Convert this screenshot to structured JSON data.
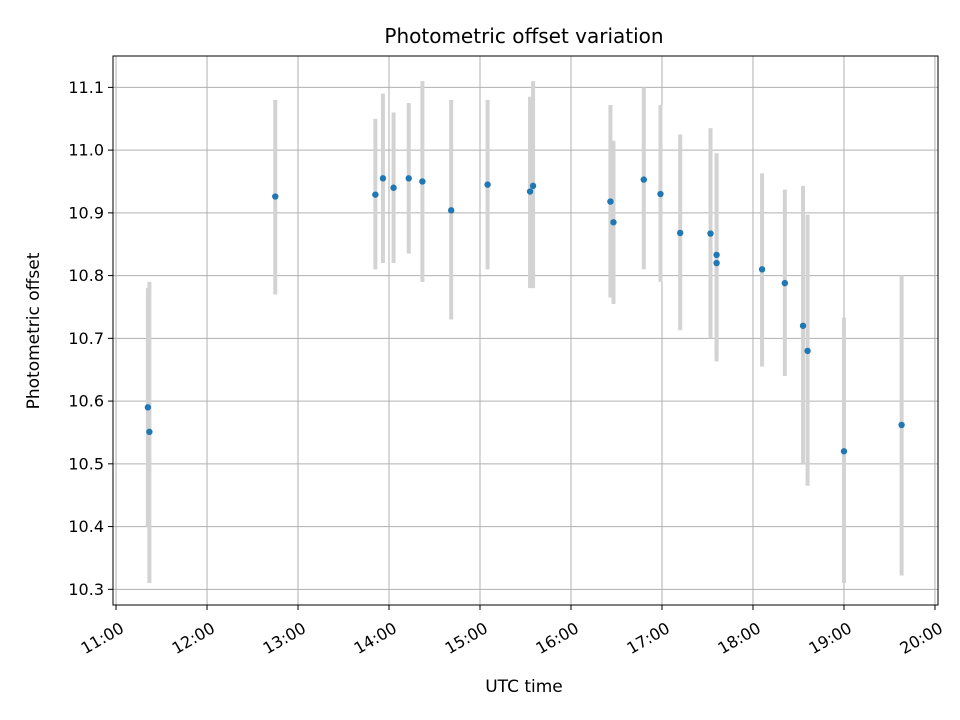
{
  "chart_data": {
    "type": "scatter",
    "title": "Photometric offset variation",
    "xlabel": "UTC time",
    "ylabel": "Photometric offset",
    "x_ticks": [
      "11:00",
      "12:00",
      "13:00",
      "14:00",
      "15:00",
      "16:00",
      "17:00",
      "18:00",
      "19:00",
      "20:00"
    ],
    "y_ticks": [
      "10.3",
      "10.4",
      "10.5",
      "10.6",
      "10.7",
      "10.8",
      "10.9",
      "11.0",
      "11.1"
    ],
    "xlim": [
      "10:58",
      "20:02"
    ],
    "ylim": [
      10.275,
      11.15
    ],
    "grid": true,
    "colors": {
      "point": "#1f77b4",
      "errorbar": "#d3d3d3",
      "grid": "#b0b0b0"
    },
    "points": [
      {
        "x": "11:21",
        "y": 10.59,
        "ylow": 10.4,
        "yhigh": 10.78
      },
      {
        "x": "11:22",
        "y": 10.551,
        "ylow": 10.31,
        "yhigh": 10.79
      },
      {
        "x": "12:45",
        "y": 10.926,
        "ylow": 10.77,
        "yhigh": 11.08
      },
      {
        "x": "13:51",
        "y": 10.929,
        "ylow": 10.81,
        "yhigh": 11.05
      },
      {
        "x": "13:56",
        "y": 10.955,
        "ylow": 10.82,
        "yhigh": 11.09
      },
      {
        "x": "14:03",
        "y": 10.94,
        "ylow": 10.82,
        "yhigh": 11.06
      },
      {
        "x": "14:13",
        "y": 10.955,
        "ylow": 10.835,
        "yhigh": 11.075
      },
      {
        "x": "14:22",
        "y": 10.95,
        "ylow": 10.79,
        "yhigh": 11.11
      },
      {
        "x": "14:41",
        "y": 10.904,
        "ylow": 10.73,
        "yhigh": 11.08
      },
      {
        "x": "15:05",
        "y": 10.945,
        "ylow": 10.81,
        "yhigh": 11.08
      },
      {
        "x": "15:33",
        "y": 10.934,
        "ylow": 10.78,
        "yhigh": 11.085
      },
      {
        "x": "15:35",
        "y": 10.943,
        "ylow": 10.78,
        "yhigh": 11.11
      },
      {
        "x": "16:26",
        "y": 10.918,
        "ylow": 10.765,
        "yhigh": 11.072
      },
      {
        "x": "16:28",
        "y": 10.885,
        "ylow": 10.755,
        "yhigh": 11.015
      },
      {
        "x": "16:48",
        "y": 10.953,
        "ylow": 10.81,
        "yhigh": 11.1
      },
      {
        "x": "16:59",
        "y": 10.93,
        "ylow": 10.79,
        "yhigh": 11.072
      },
      {
        "x": "17:12",
        "y": 10.868,
        "ylow": 10.713,
        "yhigh": 11.025
      },
      {
        "x": "17:32",
        "y": 10.867,
        "ylow": 10.7,
        "yhigh": 11.035
      },
      {
        "x": "17:36",
        "y": 10.833,
        "ylow": 10.67,
        "yhigh": 10.995
      },
      {
        "x": "17:36",
        "y": 10.82,
        "ylow": 10.663,
        "yhigh": 10.993
      },
      {
        "x": "18:06",
        "y": 10.81,
        "ylow": 10.655,
        "yhigh": 10.963
      },
      {
        "x": "18:21",
        "y": 10.788,
        "ylow": 10.64,
        "yhigh": 10.937
      },
      {
        "x": "18:33",
        "y": 10.72,
        "ylow": 10.5,
        "yhigh": 10.943
      },
      {
        "x": "18:36",
        "y": 10.68,
        "ylow": 10.465,
        "yhigh": 10.897
      },
      {
        "x": "19:00",
        "y": 10.52,
        "ylow": 10.31,
        "yhigh": 10.733
      },
      {
        "x": "19:38",
        "y": 10.562,
        "ylow": 10.322,
        "yhigh": 10.8
      }
    ]
  }
}
